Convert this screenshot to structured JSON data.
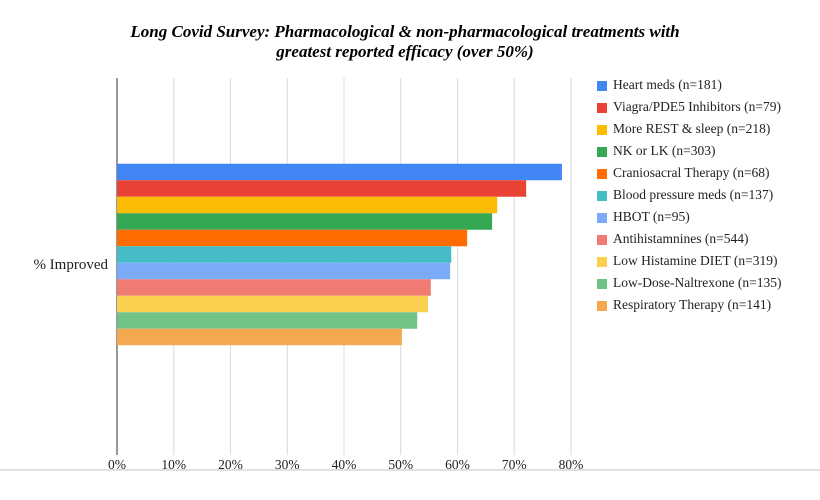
{
  "chart_data": {
    "type": "hbar",
    "title": "Long Covid Survey: Pharmacological & non-pharmacological treatments with greatest reported efficacy (over 50%)",
    "categories": [
      "% Improved"
    ],
    "series": [
      {
        "name": "Heart meds (n=181)",
        "color": "#4285f4",
        "values": [
          78.4
        ]
      },
      {
        "name": "Viagra/PDE5 Inhibitors (n=79)",
        "color": "#ea4335",
        "values": [
          72.1
        ]
      },
      {
        "name": "More REST & sleep (n=218)",
        "color": "#fbbc04",
        "values": [
          67.0
        ]
      },
      {
        "name": "NK or LK (n=303)",
        "color": "#34a853",
        "values": [
          66.1
        ]
      },
      {
        "name": "Craniosacral Therapy (n=68)",
        "color": "#ff6d01",
        "values": [
          61.7
        ]
      },
      {
        "name": "Blood pressure meds (n=137)",
        "color": "#46bdc6",
        "values": [
          58.9
        ]
      },
      {
        "name": "HBOT (n=95)",
        "color": "#7baaf7",
        "values": [
          58.7
        ]
      },
      {
        "name": "Antihistamnines (n=544)",
        "color": "#f07b72",
        "values": [
          55.3
        ]
      },
      {
        "name": "Low Histamine DIET (n=319)",
        "color": "#fcd04f",
        "values": [
          54.8
        ]
      },
      {
        "name": "Low-Dose-Naltrexone (n=135)",
        "color": "#71c287",
        "values": [
          52.9
        ]
      },
      {
        "name": "Respiratory Therapy (n=141)",
        "color": "#f4a950",
        "values": [
          50.2
        ]
      }
    ],
    "xlim": [
      0,
      80
    ],
    "xticks": [
      {
        "value": 0,
        "label": "0%"
      },
      {
        "value": 10,
        "label": "10%"
      },
      {
        "value": 20,
        "label": "20%"
      },
      {
        "value": 30,
        "label": "30%"
      },
      {
        "value": 40,
        "label": "40%"
      },
      {
        "value": 50,
        "label": "50%"
      },
      {
        "value": 60,
        "label": "60%"
      },
      {
        "value": 70,
        "label": "70%"
      },
      {
        "value": 80,
        "label": "80%"
      }
    ],
    "grid": true,
    "legend": "right"
  }
}
